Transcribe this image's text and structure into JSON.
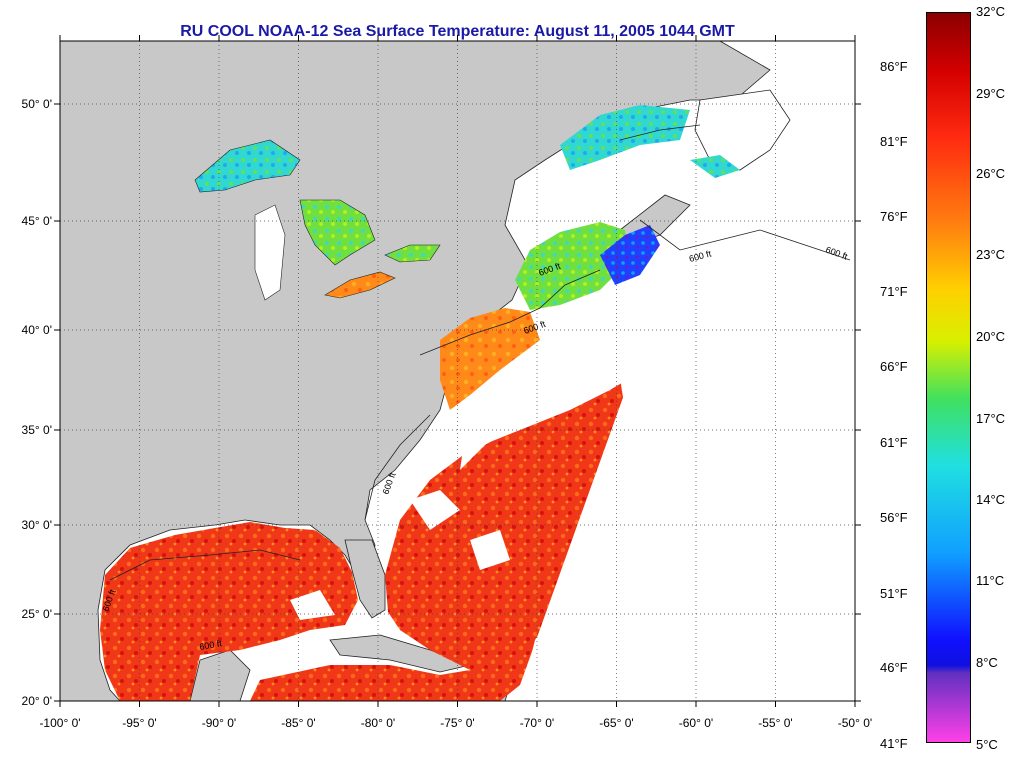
{
  "title": "RU COOL  NOAA-12  Sea Surface Temperature:  August 11, 2005 1044 GMT",
  "map": {
    "lon_range": [
      -100,
      -50
    ],
    "lat_range": [
      20,
      52
    ],
    "x_ticks": [
      "-100° 0'",
      "-95° 0'",
      "-90° 0'",
      "-85° 0'",
      "-80° 0'",
      "-75° 0'",
      "-70° 0'",
      "-65° 0'",
      "-60° 0'",
      "-55° 0'",
      "-50° 0'"
    ],
    "y_ticks": [
      "50° 0'",
      "45° 0'",
      "40° 0'",
      "35° 0'",
      "30° 0'",
      "25° 0'",
      "20° 0'"
    ],
    "grid": "dotted",
    "land_color": "#c8c8c8",
    "cloud_color": "#ffffff",
    "isobath_label": "600 ft",
    "isobath_labels_shown": [
      "600 ft",
      "600 ft",
      "600 ft",
      "600 ft",
      "600 ft",
      "600 ft",
      "600 ft"
    ]
  },
  "colorbar": {
    "celsius_labels": [
      "32°C",
      "29°C",
      "26°C",
      "23°C",
      "20°C",
      "17°C",
      "14°C",
      "11°C",
      "8°C",
      "5°C"
    ],
    "fahrenheit_labels": [
      "86°F",
      "81°F",
      "76°F",
      "71°F",
      "66°F",
      "61°F",
      "56°F",
      "51°F",
      "46°F",
      "41°F"
    ],
    "range_c": [
      5,
      32
    ],
    "colors": [
      "#8b0000",
      "#e81010",
      "#ff5010",
      "#ff9a10",
      "#f0f000",
      "#40e040",
      "#20e0e0",
      "#10a0ff",
      "#1010ff",
      "#9020d0",
      "#ff40e0"
    ]
  }
}
